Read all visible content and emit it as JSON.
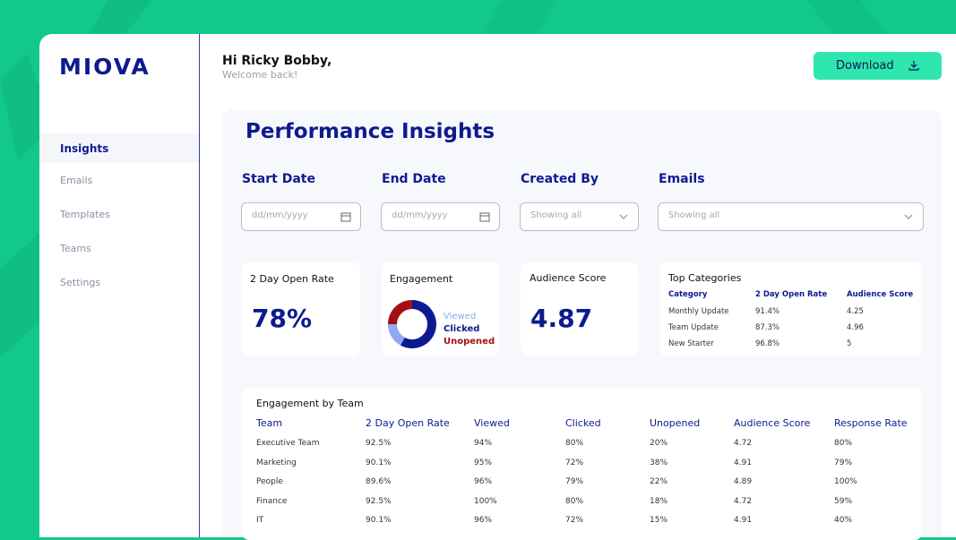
{
  "logo": "MIOVA",
  "header": {
    "greeting": "Hi Ricky Bobby,",
    "subtitle": "Welcome back!",
    "download": "Download"
  },
  "nav": [
    "Insights",
    "Emails",
    "Templates",
    "Teams",
    "Settings"
  ],
  "title": "Performance Insights",
  "filters": [
    {
      "label": "Start Date",
      "placeholder": "dd/mm/yyyy"
    },
    {
      "label": "End Date",
      "placeholder": "dd/mm/yyyy"
    },
    {
      "label": "Created By",
      "placeholder": "Showing all"
    },
    {
      "label": "Emails",
      "placeholder": "Showing all"
    }
  ],
  "kpis": {
    "open_rate": {
      "label": "2 Day Open Rate",
      "value": "78%"
    },
    "engagement": {
      "label": "Engagement",
      "legend": [
        "Viewed",
        "Clicked",
        "Unopened"
      ],
      "values": [
        17,
        58,
        25
      ],
      "colors": [
        "#8ea8f3",
        "#0d1a8f",
        "#a30f14"
      ]
    },
    "audience": {
      "label": "Audience Score",
      "value": "4.87"
    }
  },
  "top_categories": {
    "title": "Top Categories",
    "columns": [
      "Category",
      "2 Day Open Rate",
      "Audience Score"
    ],
    "rows": [
      [
        "Monthly Update",
        "91.4%",
        "4.25"
      ],
      [
        "Team Update",
        "87.3%",
        "4.96"
      ],
      [
        "New Starter",
        "96.8%",
        "5"
      ]
    ]
  },
  "team_table": {
    "title": "Engagement by Team",
    "columns": [
      "Team",
      "2 Day Open Rate",
      "Viewed",
      "Clicked",
      "Unopened",
      "Audience Score",
      "Response Rate"
    ],
    "rows": [
      [
        "Executive Team",
        "92.5%",
        "94%",
        "80%",
        "20%",
        "4.72",
        "80%"
      ],
      [
        "Marketing",
        "90.1%",
        "95%",
        "72%",
        "38%",
        "4.91",
        "79%"
      ],
      [
        "People",
        "89.6%",
        "96%",
        "79%",
        "22%",
        "4.89",
        "100%"
      ],
      [
        "Finance",
        "92.5%",
        "100%",
        "80%",
        "18%",
        "4.72",
        "59%"
      ],
      [
        "IT",
        "90.1%",
        "96%",
        "72%",
        "15%",
        "4.91",
        "40%"
      ]
    ]
  }
}
